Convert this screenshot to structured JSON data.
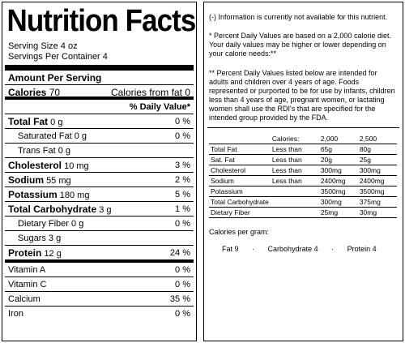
{
  "title": "Nutrition Facts",
  "serving_size": "Serving Size 4 oz",
  "servings_per_container": "Servings Per Container 4",
  "amount_per_serving": "Amount Per Serving",
  "calories_label": "Calories",
  "calories_value": "70",
  "calories_fat": "Calories from fat 0",
  "daily_value_header": "% Daily Value*",
  "nutrients": [
    {
      "label": "Total Fat",
      "amount": "0 g",
      "pct": "0 %"
    },
    {
      "label": "Saturated Fat",
      "amount": "0 g",
      "pct": "0 %"
    },
    {
      "label": "Trans Fat",
      "amount": "0 g",
      "pct": ""
    },
    {
      "label": "Cholesterol",
      "amount": "10 mg",
      "pct": "3 %"
    },
    {
      "label": "Sodium",
      "amount": "55 mg",
      "pct": "2 %"
    },
    {
      "label": "Potassium",
      "amount": "180 mg",
      "pct": "5 %"
    },
    {
      "label": "Total Carbohydrate",
      "amount": "3 g",
      "pct": "1 %"
    },
    {
      "label": "Dietary Fiber",
      "amount": "0 g",
      "pct": "0 %"
    },
    {
      "label": "Sugars",
      "amount": "3 g",
      "pct": ""
    },
    {
      "label": "Protein",
      "amount": "12 g",
      "pct": "24 %"
    }
  ],
  "vitamins": [
    {
      "label": "Vitamin A",
      "pct": "0 %"
    },
    {
      "label": "Vitamin C",
      "pct": "0 %"
    },
    {
      "label": "Calcium",
      "pct": "35 %"
    },
    {
      "label": "Iron",
      "pct": "0 %"
    }
  ],
  "notes": {
    "n1": "(-) Information is currently not available for this nutrient.",
    "n2": "* Percent Daily Values are based on a 2,000 calorie diet. Your daily values may be higher or lower depending on your calorie needs:**",
    "n3": "** Percent Daily Values listed below are intended for adults and children over 4 years of age. Foods represented or purported to be for use by infants, children less than 4 years of age, pregnant women, or lactating women shall use the RDI's that are specified for the intended group provided by the FDA."
  },
  "dv_table": {
    "header": [
      "",
      "Calories:",
      "2,000",
      "2,500"
    ],
    "rows": [
      [
        "Total Fat",
        "Less than",
        "65g",
        "80g"
      ],
      [
        "Sat. Fat",
        "Less than",
        "20g",
        "25g"
      ],
      [
        "Cholesterol",
        "Less than",
        "300mg",
        "300mg"
      ],
      [
        "Sodium",
        "Less than",
        "2400mg",
        "2400mg"
      ],
      [
        "Potassium",
        "",
        "3500mg",
        "3500mg"
      ],
      [
        "Total Carbohydrate",
        "",
        "300mg",
        "375mg"
      ],
      [
        "Dietary Fiber",
        "",
        "25mg",
        "30mg"
      ]
    ]
  },
  "calories_per_gram": {
    "label": "Calories per gram:",
    "fat": "Fat 9",
    "carb": "Carbohydrate 4",
    "protein": "Protein 4",
    "sep": "·"
  }
}
